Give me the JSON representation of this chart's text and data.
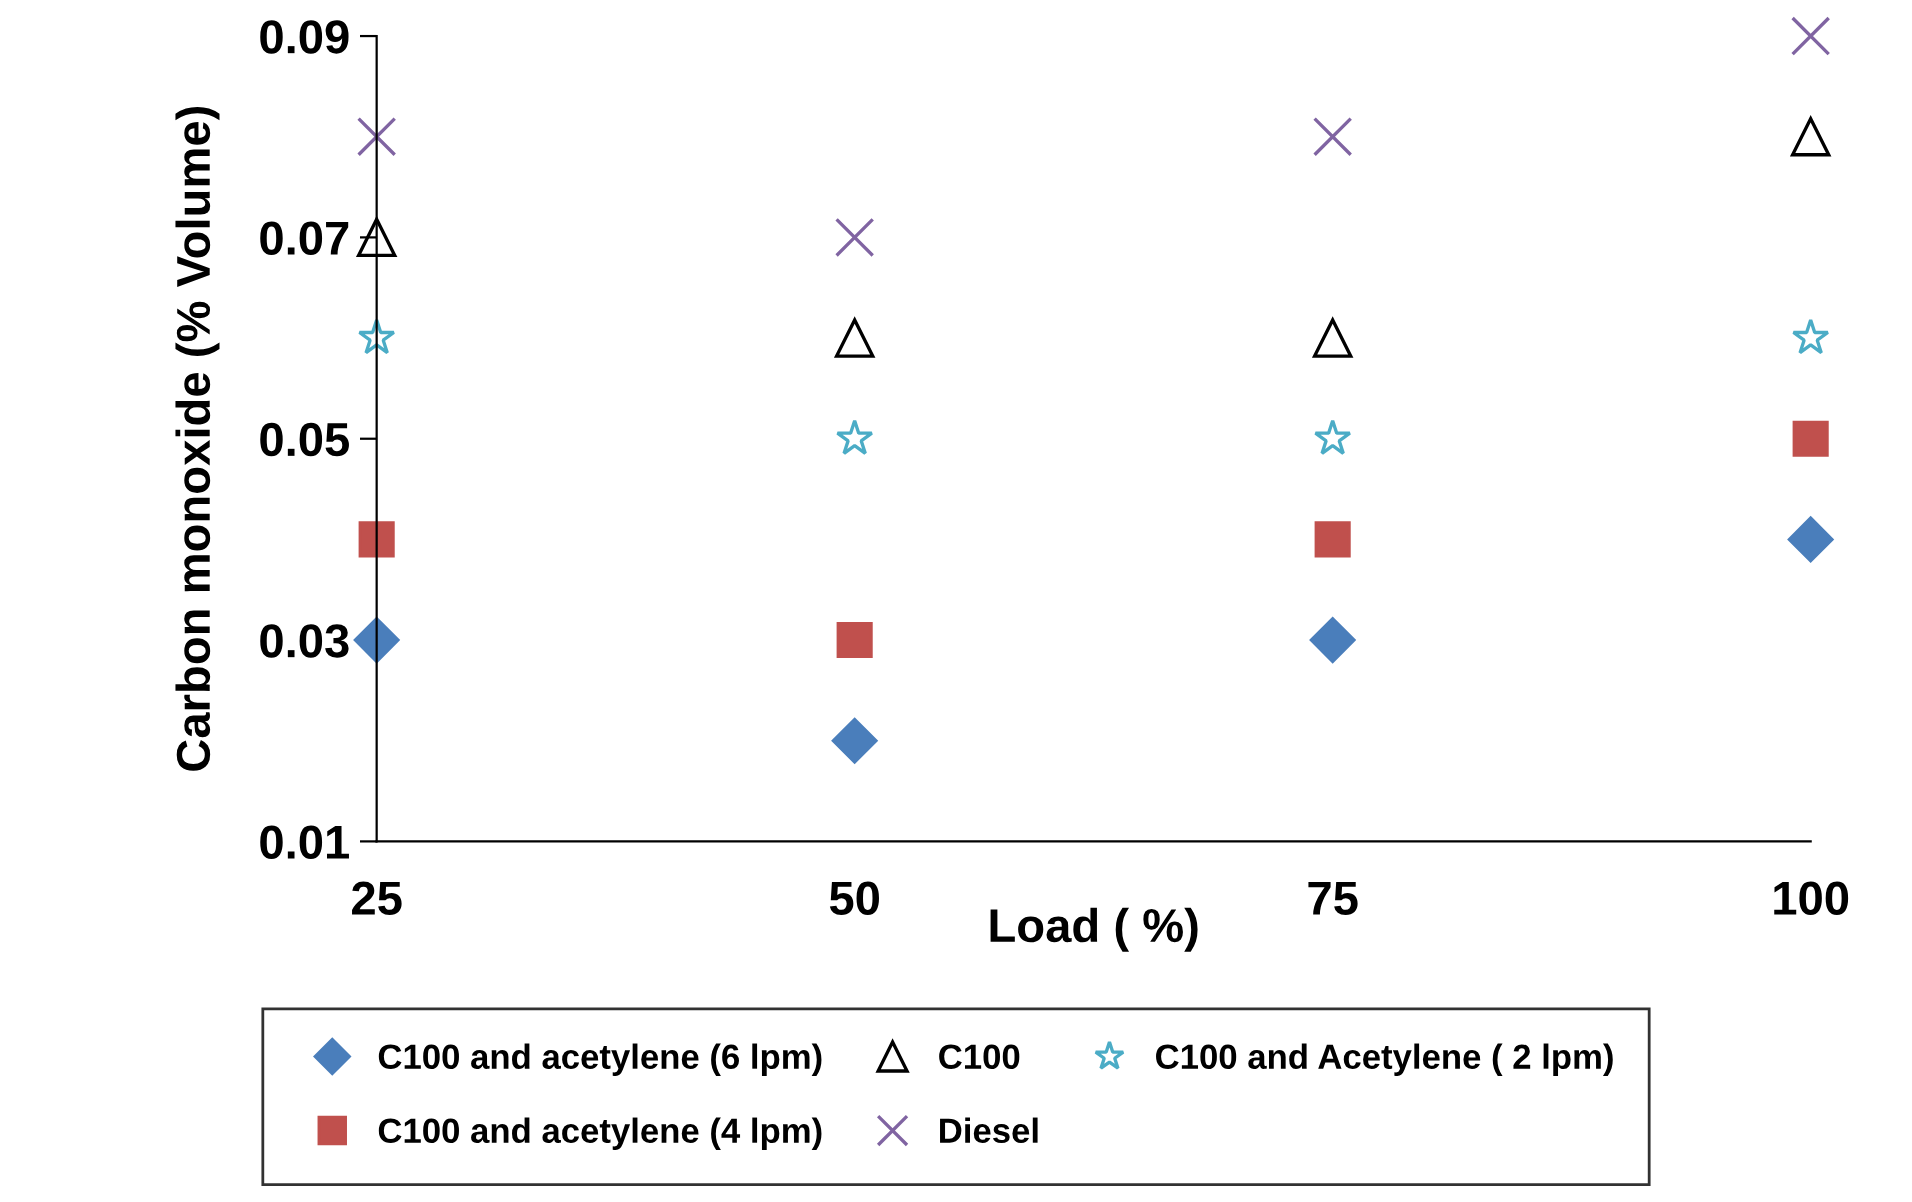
{
  "chart_data": {
    "type": "scatter",
    "xlabel": "Load ( %)",
    "ylabel": "Carbon monoxide (% Volume)",
    "x": [
      25,
      50,
      75,
      100
    ],
    "xlim": [
      25,
      100
    ],
    "xticks": [
      25,
      50,
      75,
      100
    ],
    "ylim": [
      0.01,
      0.09
    ],
    "yticks": [
      0.01,
      0.03,
      0.05,
      0.07,
      0.09
    ],
    "grid": false,
    "legend": "bottom",
    "series": [
      {
        "name": "C100 and acetylene (6 lpm)",
        "color": "#4a7ebb",
        "marker": "diamond",
        "values": [
          0.03,
          0.02,
          0.03,
          0.04
        ]
      },
      {
        "name": "C100 and acetylene (4 lpm)",
        "color": "#c0504d",
        "marker": "square",
        "values": [
          0.04,
          0.03,
          0.04,
          0.05
        ]
      },
      {
        "name": "C100",
        "color": "#000000",
        "marker": "triangle",
        "values": [
          0.07,
          0.06,
          0.06,
          0.08
        ]
      },
      {
        "name": "Diesel",
        "color": "#8064a2",
        "marker": "cross",
        "values": [
          0.08,
          0.07,
          0.08,
          0.09
        ]
      },
      {
        "name": "C100 and Acetylene ( 2 lpm)",
        "color": "#4bacc6",
        "marker": "star",
        "values": [
          0.06,
          0.05,
          0.05,
          0.06
        ]
      }
    ]
  }
}
